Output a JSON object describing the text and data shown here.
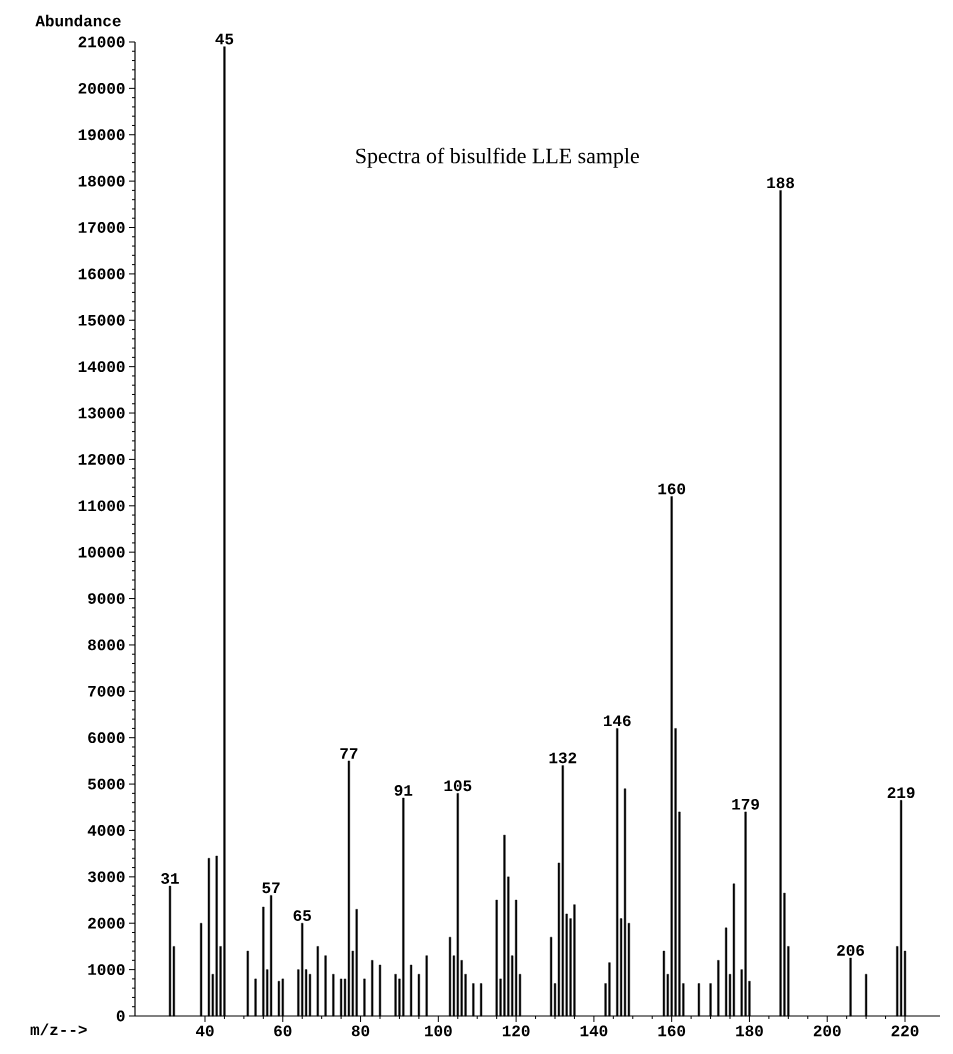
{
  "chart_data": {
    "type": "bar",
    "title": "Spectra of bisulfide LLE sample",
    "xlabel": "m/z-->",
    "ylabel": "Abundance",
    "x": [
      31,
      32,
      39,
      41,
      42,
      43,
      44,
      45,
      51,
      53,
      55,
      56,
      57,
      59,
      60,
      64,
      65,
      66,
      67,
      69,
      71,
      73,
      75,
      76,
      77,
      78,
      79,
      81,
      83,
      85,
      89,
      90,
      91,
      93,
      95,
      97,
      103,
      104,
      105,
      106,
      107,
      109,
      111,
      115,
      116,
      117,
      118,
      119,
      120,
      121,
      129,
      130,
      131,
      132,
      133,
      134,
      135,
      143,
      144,
      146,
      147,
      148,
      149,
      158,
      159,
      160,
      161,
      162,
      163,
      167,
      170,
      172,
      174,
      175,
      176,
      178,
      179,
      180,
      188,
      189,
      190,
      206,
      210,
      218,
      219,
      220
    ],
    "values": [
      2800,
      1500,
      2000,
      3400,
      900,
      3450,
      1500,
      20900,
      1400,
      800,
      2350,
      1000,
      2600,
      750,
      800,
      1000,
      2000,
      1000,
      900,
      1500,
      1300,
      900,
      800,
      800,
      5500,
      1400,
      2300,
      800,
      1200,
      1100,
      900,
      800,
      4700,
      1100,
      900,
      1300,
      1700,
      1300,
      4800,
      1200,
      900,
      700,
      700,
      2500,
      800,
      3900,
      3000,
      1300,
      2500,
      900,
      1700,
      700,
      3300,
      5400,
      2200,
      2100,
      2400,
      700,
      1150,
      6200,
      2100,
      4900,
      2000,
      1400,
      900,
      11200,
      6200,
      4400,
      700,
      700,
      700,
      1200,
      1900,
      900,
      2850,
      1000,
      4400,
      750,
      17800,
      2650,
      1500,
      1250,
      900,
      1500,
      4650,
      1400
    ],
    "color": "#000000",
    "xlim": [
      22,
      229
    ],
    "ylim": [
      0,
      21000
    ],
    "xticks": [
      40,
      60,
      80,
      100,
      120,
      140,
      160,
      180,
      200,
      220
    ],
    "yticks": [
      0,
      1000,
      2000,
      3000,
      4000,
      5000,
      6000,
      7000,
      8000,
      9000,
      10000,
      11000,
      12000,
      13000,
      14000,
      15000,
      16000,
      17000,
      18000,
      19000,
      20000,
      21000
    ],
    "annotations": [
      {
        "text": "31",
        "x": 31,
        "y": 2800
      },
      {
        "text": "45",
        "x": 45,
        "y": 20900
      },
      {
        "text": "57",
        "x": 57,
        "y": 2600
      },
      {
        "text": "65",
        "x": 65,
        "y": 2000
      },
      {
        "text": "77",
        "x": 77,
        "y": 5500
      },
      {
        "text": "91",
        "x": 91,
        "y": 4700
      },
      {
        "text": "105",
        "x": 105,
        "y": 4800
      },
      {
        "text": "132",
        "x": 132,
        "y": 5400
      },
      {
        "text": "146",
        "x": 146,
        "y": 6200
      },
      {
        "text": "160",
        "x": 160,
        "y": 11200
      },
      {
        "text": "179",
        "x": 179,
        "y": 4400
      },
      {
        "text": "188",
        "x": 188,
        "y": 17800
      },
      {
        "text": "206",
        "x": 206,
        "y": 1250
      },
      {
        "text": "219",
        "x": 219,
        "y": 4650
      }
    ]
  }
}
